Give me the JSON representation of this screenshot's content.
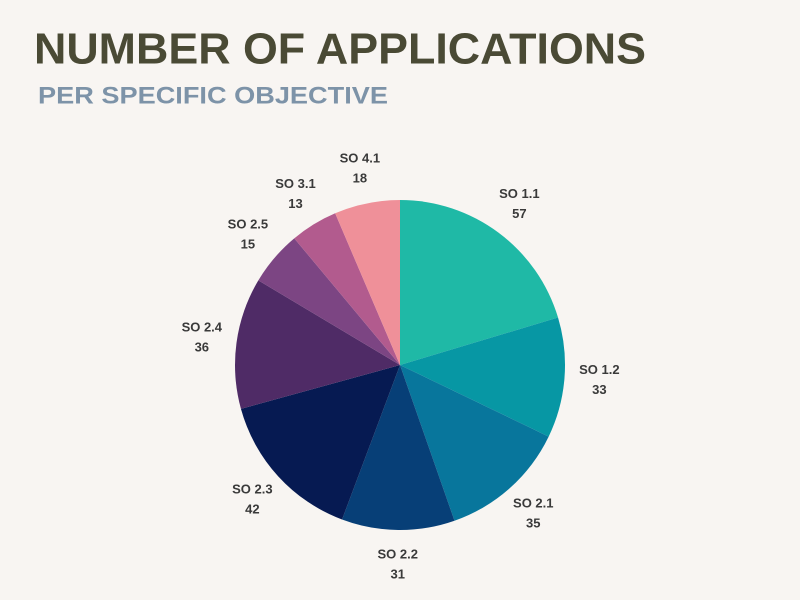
{
  "chart_data": {
    "type": "pie",
    "title": "NUMBER OF APPLICATIONS",
    "subtitle": "PER SPECIFIC OBJECTIVE",
    "categories": [
      "SO 1.1",
      "SO 1.2",
      "SO 2.1",
      "SO 2.2",
      "SO 2.3",
      "SO 2.4",
      "SO 2.5",
      "SO 3.1",
      "SO 4.1"
    ],
    "values": [
      57,
      33,
      35,
      31,
      42,
      36,
      15,
      13,
      18
    ],
    "colors": [
      "#1fb9a6",
      "#0797a4",
      "#08769c",
      "#073f77",
      "#061a52",
      "#4f2b66",
      "#7c4583",
      "#b25b8e",
      "#ef9099"
    ]
  }
}
